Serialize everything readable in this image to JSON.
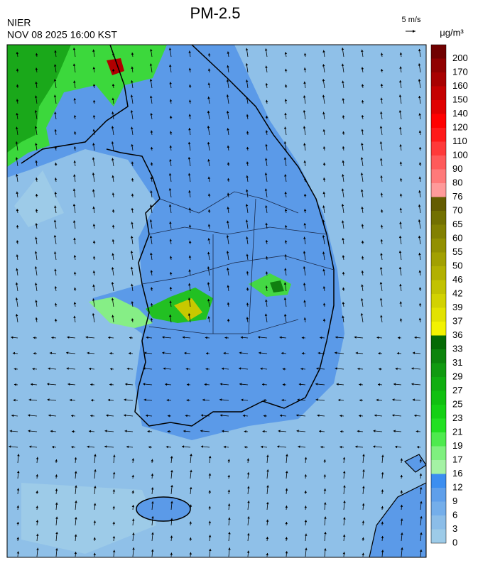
{
  "header": {
    "title": "PM-2.5",
    "agency": "NIER",
    "timestamp": "NOV 08 2025 16:00 KST",
    "wind_scale": "5 m/s",
    "unit": "μg/m³"
  },
  "colorbar": {
    "levels": [
      "0",
      "3",
      "6",
      "9",
      "12",
      "16",
      "17",
      "19",
      "21",
      "23",
      "25",
      "27",
      "29",
      "31",
      "33",
      "36",
      "37",
      "39",
      "42",
      "46",
      "50",
      "55",
      "60",
      "65",
      "70",
      "76",
      "80",
      "90",
      "100",
      "110",
      "120",
      "140",
      "150",
      "160",
      "170",
      "200"
    ],
    "colors": [
      "#9dcbe8",
      "#8bbde8",
      "#74aeea",
      "#5f9fea",
      "#3c8ef0",
      "#a4f2a4",
      "#7ff07f",
      "#4eea4e",
      "#22e022",
      "#14d014",
      "#10c010",
      "#10ae10",
      "#109a10",
      "#0c840c",
      "#046a04",
      "#f2f200",
      "#e2e200",
      "#d2d200",
      "#c2c200",
      "#b2b000",
      "#a2a000",
      "#929000",
      "#828000",
      "#727000",
      "#645c00",
      "#ff9a9a",
      "#ff7a7a",
      "#ff5a5a",
      "#ff3a3a",
      "#ff1a1a",
      "#ff0000",
      "#e00000",
      "#c40000",
      "#a80000",
      "#900000",
      "#700000"
    ]
  }
}
